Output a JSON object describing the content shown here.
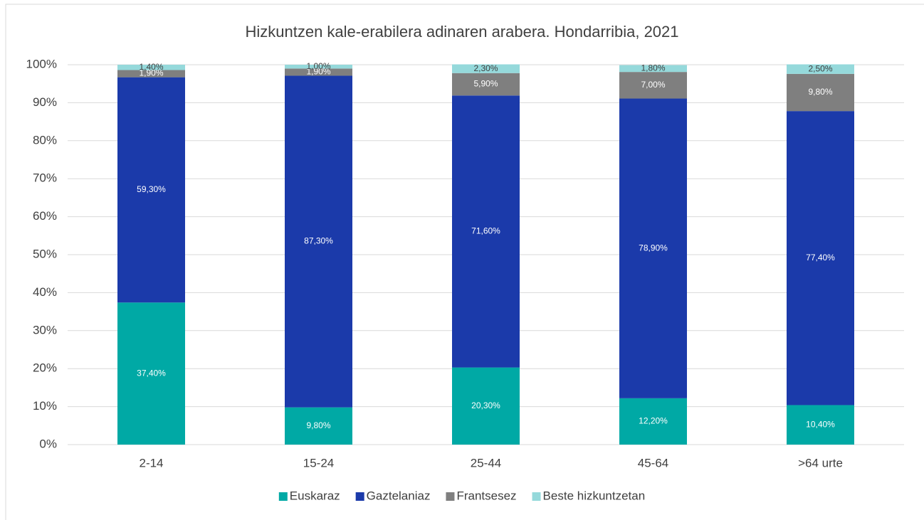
{
  "chart_data": {
    "type": "stacked_bar",
    "title": "Hizkuntzen kale-erabilera adinaren arabera. Hondarribia, 2021",
    "categories": [
      "2-14",
      "15-24",
      "25-44",
      "45-64",
      ">64 urte"
    ],
    "series": [
      {
        "name": "Euskaraz",
        "color": "#00a9a5",
        "values": [
          37.4,
          9.8,
          20.3,
          12.2,
          10.4
        ],
        "value_labels": [
          "37,40%",
          "9,80%",
          "20,30%",
          "12,20%",
          "10,40%"
        ]
      },
      {
        "name": "Gaztelaniaz",
        "color": "#1b3aaa",
        "values": [
          59.3,
          87.3,
          71.6,
          78.9,
          77.4
        ],
        "value_labels": [
          "59,30%",
          "87,30%",
          "71,60%",
          "78,90%",
          "77,40%"
        ]
      },
      {
        "name": "Frantsesez",
        "color": "#7f7f7f",
        "values": [
          1.9,
          1.9,
          5.9,
          7.0,
          9.8
        ],
        "value_labels": [
          "1,90%",
          "1,90%",
          "5,90%",
          "7,00%",
          "9,80%"
        ]
      },
      {
        "name": "Beste hizkuntzetan",
        "color": "#95d9db",
        "values": [
          1.4,
          1.0,
          2.3,
          1.8,
          2.5
        ],
        "value_labels": [
          "1,40%",
          "1,00%",
          "2,30%",
          "1,80%",
          "2,50%"
        ]
      }
    ],
    "ylim": [
      0,
      100
    ],
    "yticks": [
      {
        "value": 0,
        "label": "0%"
      },
      {
        "value": 10,
        "label": "10%"
      },
      {
        "value": 20,
        "label": "20%"
      },
      {
        "value": 30,
        "label": "30%"
      },
      {
        "value": 40,
        "label": "40%"
      },
      {
        "value": 50,
        "label": "50%"
      },
      {
        "value": 60,
        "label": "60%"
      },
      {
        "value": 70,
        "label": "70%"
      },
      {
        "value": 80,
        "label": "80%"
      },
      {
        "value": 90,
        "label": "90%"
      },
      {
        "value": 100,
        "label": "100%"
      }
    ],
    "grid": true,
    "legend": "bottom"
  }
}
